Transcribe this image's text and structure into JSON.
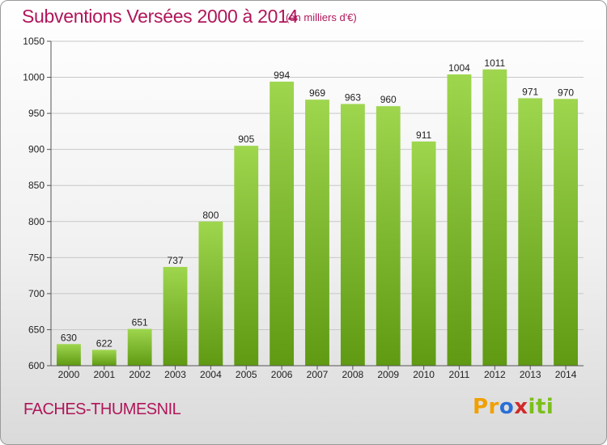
{
  "header": {
    "title": "Subventions Versées 2000 à 2014",
    "subtitle": "(en milliers d'€)"
  },
  "footer": {
    "place": "FACHES-THUMESNIL",
    "logo": {
      "p1": "Pr",
      "p2": "o",
      "p3": "x",
      "p4": "iti"
    }
  },
  "colors": {
    "bar_top": "#9ed64e",
    "bar_bottom": "#5f9a12",
    "title": "#b0165a"
  },
  "chart_data": {
    "type": "bar",
    "title": "Subventions Versées 2000 à 2014",
    "subtitle": "(en milliers d'€)",
    "categories": [
      "2000",
      "2001",
      "2002",
      "2003",
      "2004",
      "2005",
      "2006",
      "2007",
      "2008",
      "2009",
      "2010",
      "2011",
      "2012",
      "2013",
      "2014"
    ],
    "values": [
      630,
      622,
      651,
      737,
      800,
      905,
      994,
      969,
      963,
      960,
      911,
      1004,
      1011,
      971,
      970
    ],
    "ylim": [
      600,
      1050
    ],
    "yticks": [
      600,
      650,
      700,
      750,
      800,
      850,
      900,
      950,
      1000,
      1050
    ],
    "grid": true
  }
}
